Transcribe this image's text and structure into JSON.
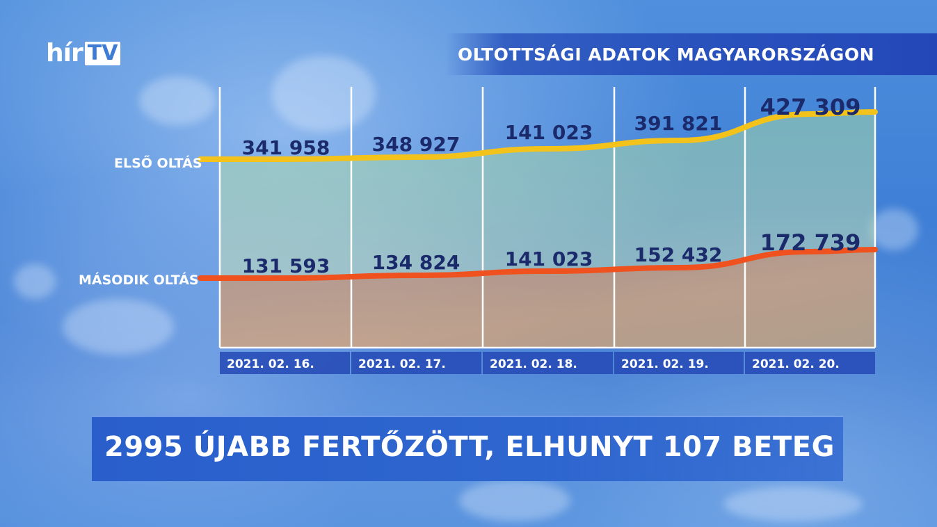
{
  "channel": {
    "logo_left": "hír",
    "logo_right": "TV"
  },
  "header": {
    "title": "OLTOTTSÁGI ADATOK MAGYARORSZÁGON"
  },
  "chart_data": {
    "type": "line",
    "title": "OLTOTTSÁGI ADATOK MAGYARORSZÁGON",
    "categories": [
      "2021. 02. 16.",
      "2021. 02. 17.",
      "2021. 02. 18.",
      "2021. 02. 19.",
      "2021. 02. 20."
    ],
    "series": [
      {
        "name": "ELSŐ OLTÁS",
        "values": [
          341958,
          348927,
          141023,
          391821,
          427309
        ],
        "labels": [
          "341 958",
          "348 927",
          "141 023",
          "391 821",
          "427 309"
        ],
        "color": "#f3c21b"
      },
      {
        "name": "MÁSODIK OLTÁS",
        "values": [
          131593,
          134824,
          141023,
          152432,
          172739
        ],
        "labels": [
          "131 593",
          "134 824",
          "141 023",
          "152 432",
          "172 739"
        ],
        "color": "#f0521f"
      }
    ],
    "grid": true
  },
  "ticker": {
    "headline": "2995 ÚJABB FERTŐZÖTT, ELHUNYT 107 BETEG"
  },
  "colors": {
    "label_text": "#1b2a6b",
    "date_box": "#2449b5"
  }
}
